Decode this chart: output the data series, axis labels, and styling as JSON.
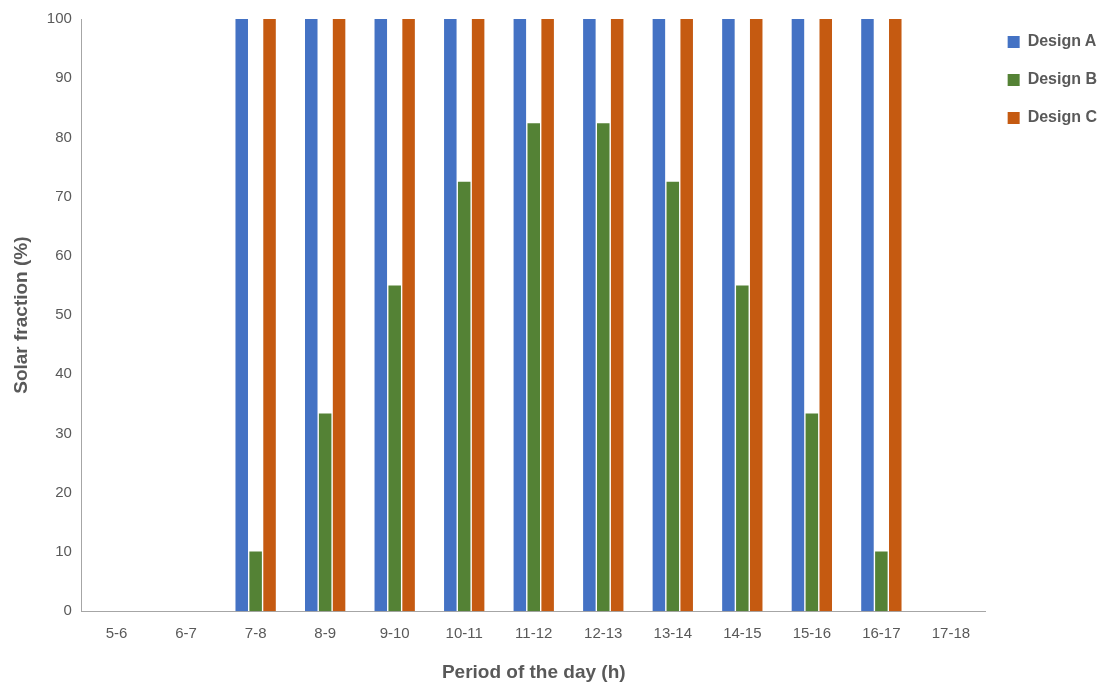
{
  "chart_data": {
    "type": "bar",
    "xlabel": "Period of the day (h)",
    "ylabel": "Solar fraction (%)",
    "categories": [
      "5-6",
      "6-7",
      "7-8",
      "8-9",
      "9-10",
      "10-11",
      "11-12",
      "12-13",
      "13-14",
      "14-15",
      "15-16",
      "16-17",
      "17-18"
    ],
    "series": [
      {
        "name": "Design A",
        "color": "#4472c4",
        "values": [
          0,
          0,
          100,
          100,
          100,
          100,
          100,
          100,
          100,
          100,
          100,
          100,
          0
        ]
      },
      {
        "name": "Design B",
        "color": "#548235",
        "values": [
          0,
          0,
          10.1,
          33.4,
          55,
          72.5,
          82.4,
          82.4,
          72.5,
          55,
          33.4,
          10.1,
          0
        ]
      },
      {
        "name": "Design C",
        "color": "#c55a11",
        "values": [
          0,
          0,
          100,
          100,
          100,
          100,
          100,
          100,
          100,
          100,
          100,
          100,
          0
        ]
      }
    ],
    "ylim": [
      0,
      100
    ],
    "yticks": [
      0,
      10,
      20,
      30,
      40,
      50,
      60,
      70,
      80,
      90,
      100
    ],
    "grid": false,
    "legend": "right"
  }
}
